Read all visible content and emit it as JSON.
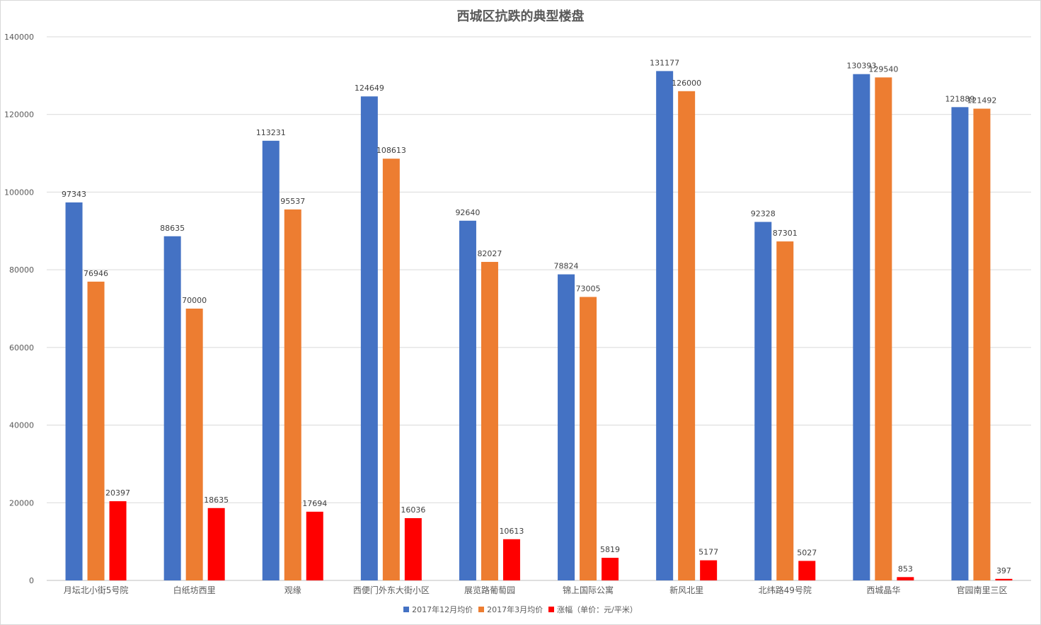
{
  "chart_data": {
    "type": "bar",
    "title": "西城区抗跌的典型楼盘",
    "categories": [
      "月坛北小街5号院",
      "白纸坊西里",
      "观缘",
      "西便门外东大街小区",
      "展览路葡萄园",
      "锦上国际公寓",
      "新风北里",
      "北纬路49号院",
      "西城晶华",
      "官园南里三区"
    ],
    "series": [
      {
        "name": "2017年12月均价",
        "color": "#4472c4",
        "values": [
          97343,
          88635,
          113231,
          124649,
          92640,
          78824,
          131177,
          92328,
          130393,
          121889
        ]
      },
      {
        "name": "2017年3月均价",
        "color": "#ed7d31",
        "values": [
          76946,
          70000,
          95537,
          108613,
          82027,
          73005,
          126000,
          87301,
          129540,
          121492
        ]
      },
      {
        "name": "涨幅（单价：元/平米）",
        "color": "#ff0000",
        "values": [
          20397,
          18635,
          17694,
          16036,
          10613,
          5819,
          5177,
          5027,
          853,
          397
        ]
      }
    ],
    "ylim": [
      0,
      140000
    ],
    "yticks": [
      0,
      20000,
      40000,
      60000,
      80000,
      100000,
      120000,
      140000
    ],
    "grid": true,
    "legend_position": "bottom"
  }
}
